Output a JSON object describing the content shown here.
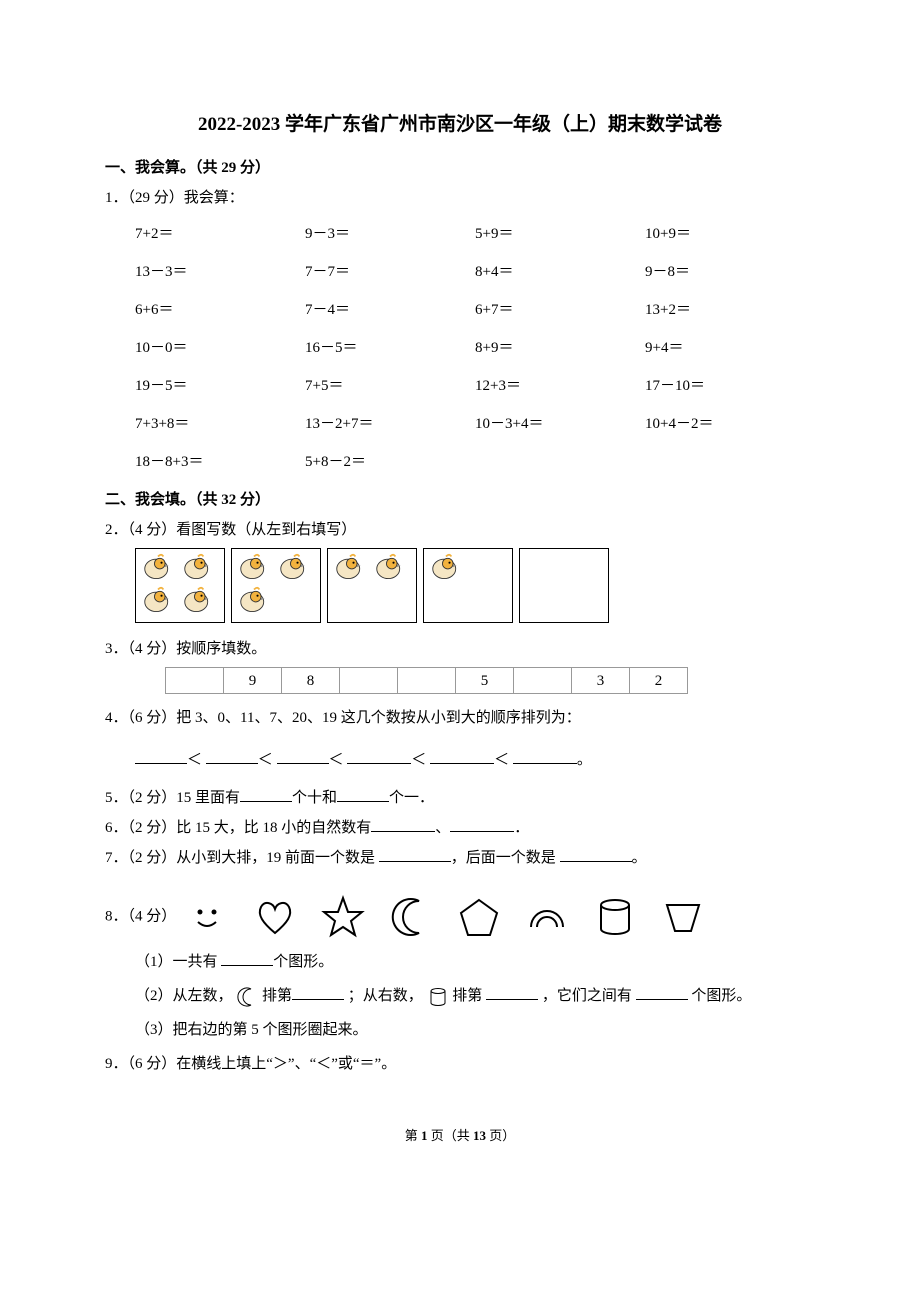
{
  "title": "2022-2023 学年广东省广州市南沙区一年级（上）期末数学试卷",
  "sec1": {
    "heading": "一、我会算。（共 29 分）",
    "q1_label": "1．（29 分）我会算："
  },
  "calc": {
    "r1c1": "7+2＝",
    "r1c2": "9－3＝",
    "r1c3": "5+9＝",
    "r1c4": "10+9＝",
    "r2c1": "13－3＝",
    "r2c2": "7－7＝",
    "r2c3": "8+4＝",
    "r2c4": "9－8＝",
    "r3c1": "6+6＝",
    "r3c2": "7－4＝",
    "r3c3": "6+7＝",
    "r3c4": "13+2＝",
    "r4c1": "10－0＝",
    "r4c2": "16－5＝",
    "r4c3": "8+9＝",
    "r4c4": "9+4＝",
    "r5c1": "19－5＝",
    "r5c2": "7+5＝",
    "r5c3": "12+3＝",
    "r5c4": "17－10＝",
    "r6c1": "7+3+8＝",
    "r6c2": "13－2+7＝",
    "r6c3": "10－3+4＝",
    "r6c4": "10+4－2＝",
    "r7c1": "18－8+3＝",
    "r7c2": "5+8－2＝"
  },
  "sec2": {
    "heading": "二、我会填。（共 32 分）"
  },
  "q2": {
    "label": "2．（4 分）看图写数（从左到右填写）",
    "boxes": [
      4,
      3,
      2,
      1,
      0
    ]
  },
  "q3": {
    "label": "3．（4 分）按顺序填数。",
    "cells": [
      "",
      "9",
      "8",
      "",
      "",
      "5",
      "",
      "3",
      "2"
    ]
  },
  "q4": {
    "label": "4．（6 分）把 3、0、11、7、20、19 这几个数按从小到大的顺序排列为：",
    "lt": "＜",
    "tail": "。"
  },
  "q5": {
    "prefix": "5．（2 分）15 里面有",
    "mid": "个十和",
    "suffix": "个一．"
  },
  "q6": {
    "prefix": "6．（2 分）比 15 大，比 18 小的自然数有",
    "sep": "、",
    "end": "．"
  },
  "q7": {
    "prefix": "7．（2 分）从小到大排，19 前面一个数是 ",
    "mid": "，后面一个数是 ",
    "end": "。"
  },
  "q8": {
    "label": "8．（4 分）",
    "s1_a": "（1）一共有 ",
    "s1_b": "个图形。",
    "s2_a": "（2）从左数，",
    "s2_b": "排第",
    "s2_c": "；从右数，",
    "s2_d": " 排第 ",
    "s2_e": "，它们之间有 ",
    "s2_f": "个图形。",
    "s3": "（3）把右边的第 5 个图形圈起来。"
  },
  "q9": {
    "label": "9．（6 分）在横线上填上“＞”、“＜”或“＝”。"
  },
  "footer": {
    "a": "第 ",
    "b": "1 ",
    "c": "页（共 ",
    "d": "13 ",
    "e": "页）"
  },
  "svg": {
    "bird_body": "#f5e6c4",
    "bird_stroke": "#333",
    "crest": "#f2b23e",
    "shape_stroke": "#000",
    "shape_stroke_w": 2
  }
}
